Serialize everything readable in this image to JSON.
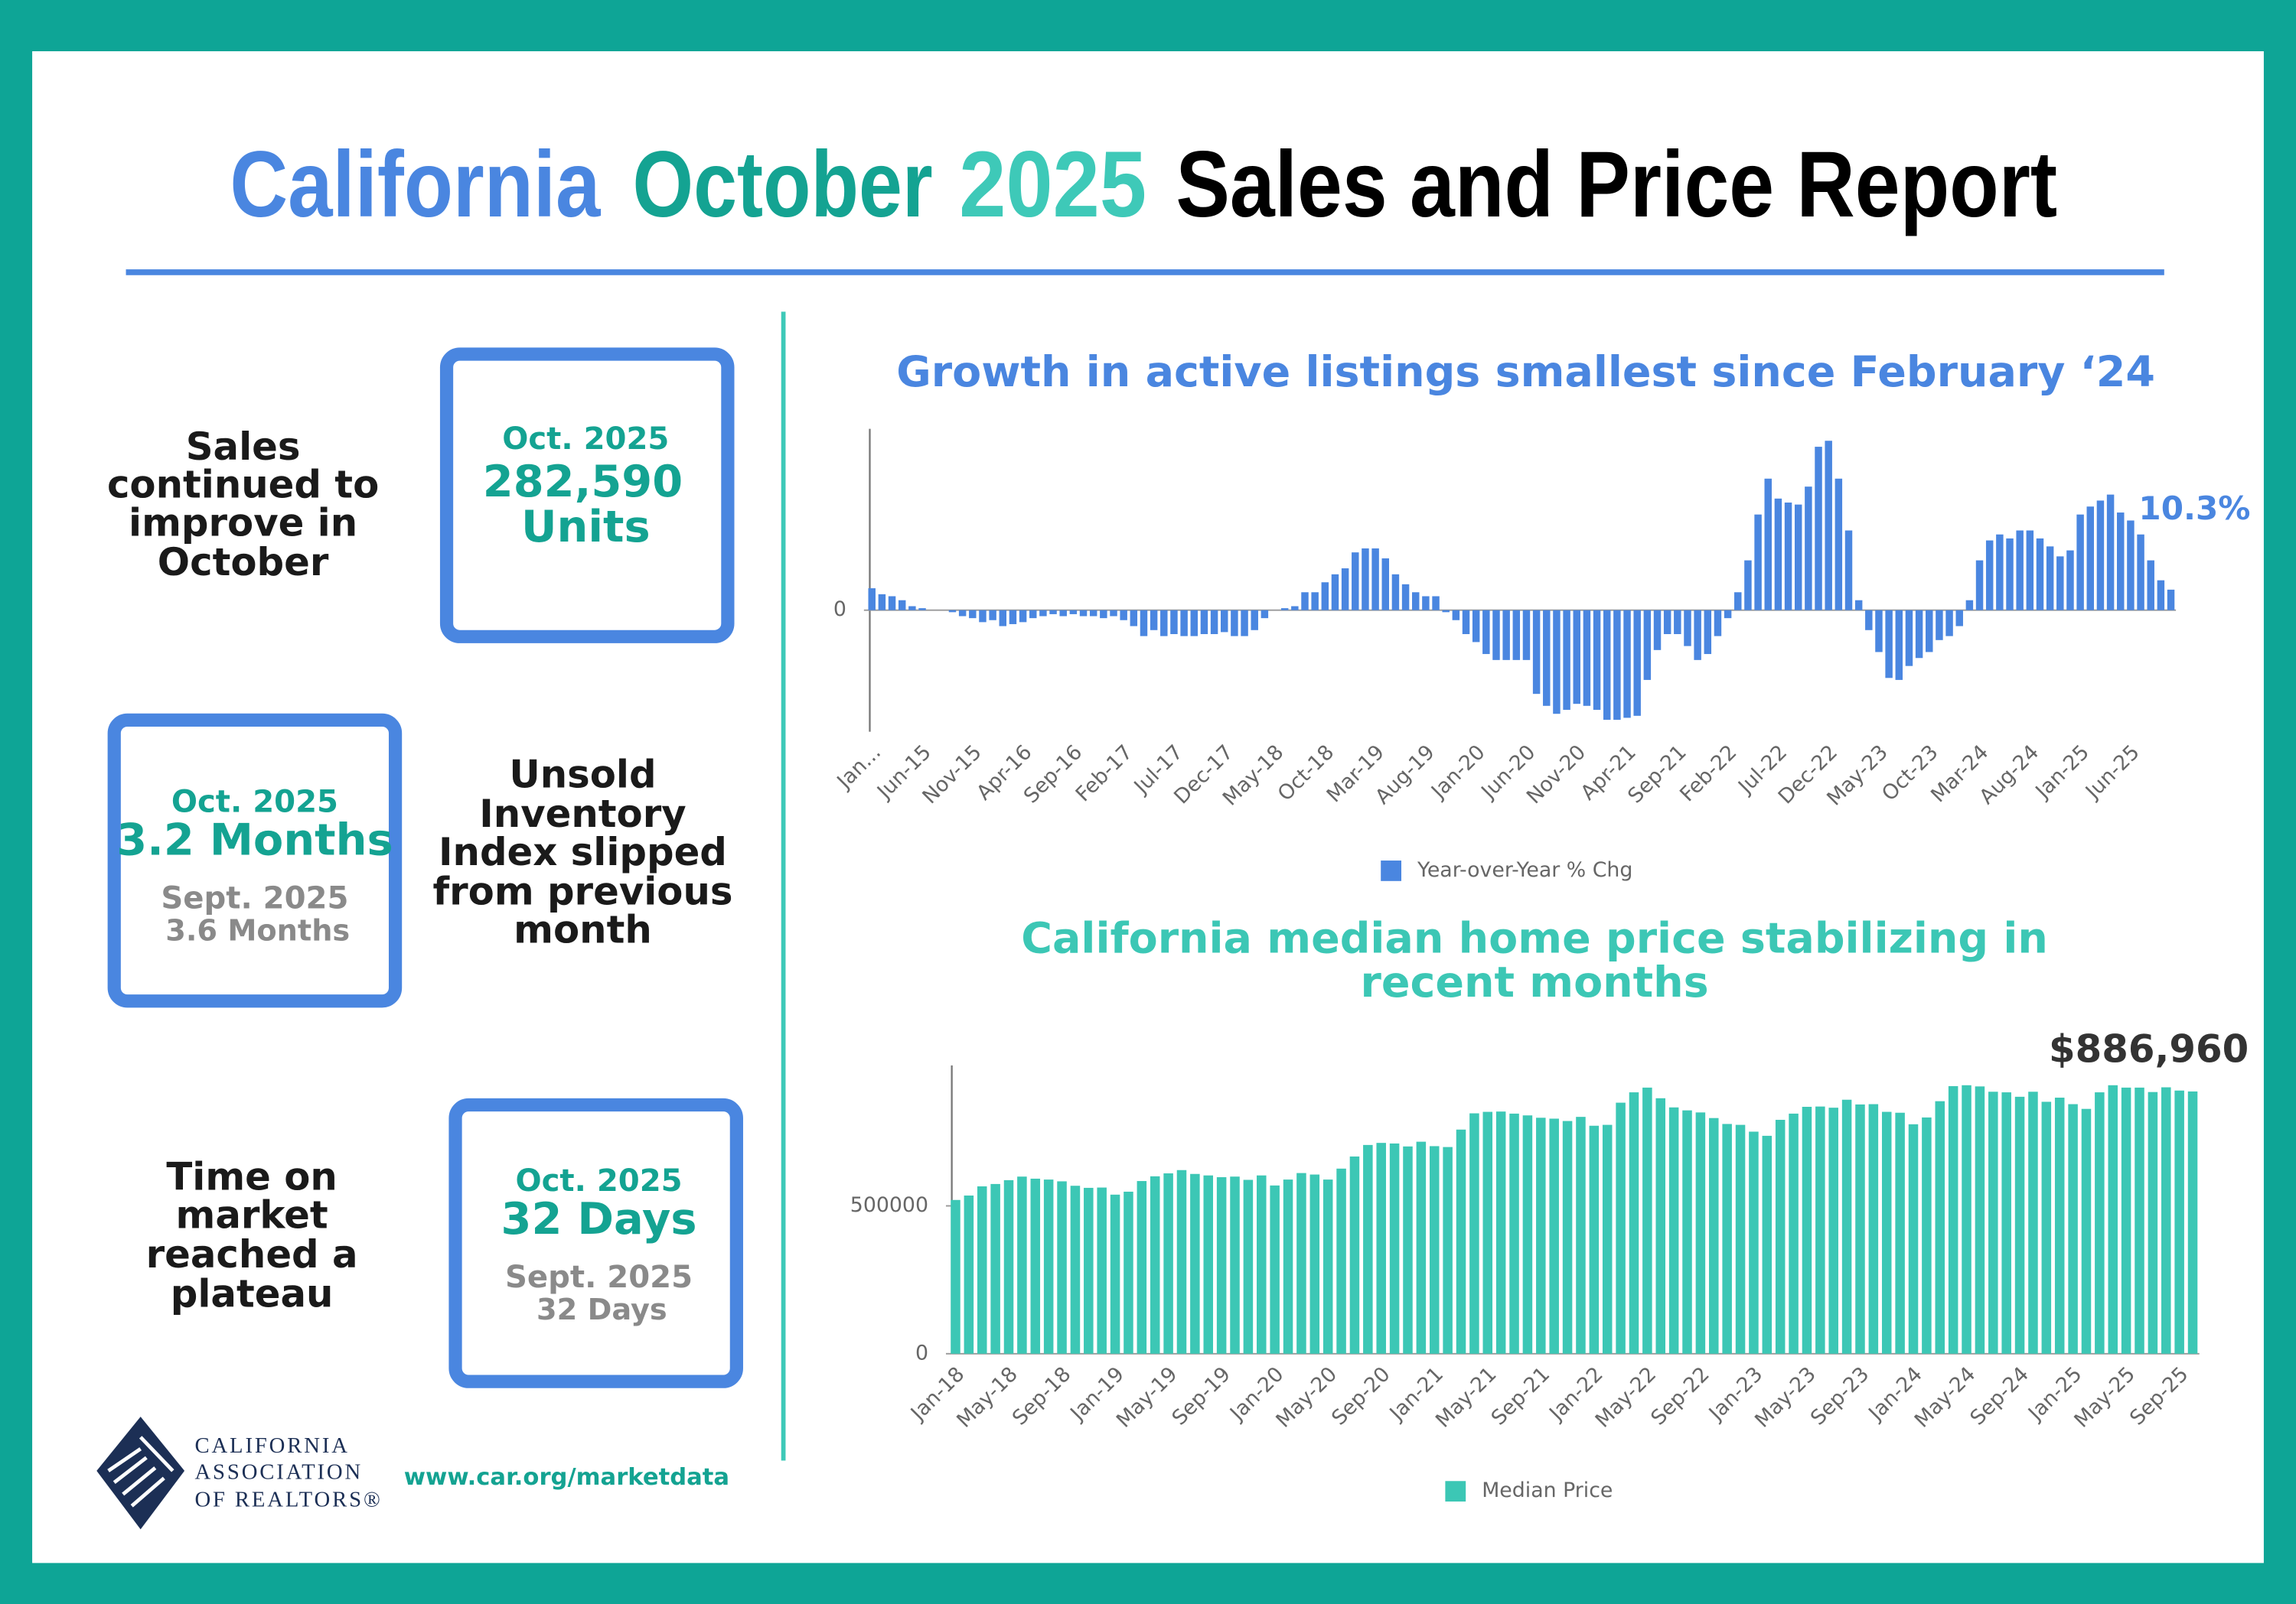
{
  "header": {
    "title": [
      "California",
      "October",
      "2025",
      "Sales and Price Report"
    ]
  },
  "panels": [
    {
      "note": [
        "Sales",
        "continued to",
        "improve in",
        "October"
      ],
      "box": [
        "Oct. 2025",
        "282,590",
        "Units"
      ]
    },
    {
      "box": [
        "Oct. 2025",
        "3.2 Months",
        "Sept. 2025",
        "3.6 Months"
      ],
      "note": [
        "Unsold",
        "Inventory",
        "Index slipped",
        "from previous",
        "month"
      ]
    },
    {
      "note": [
        "Time on",
        "market",
        "reached a",
        "plateau"
      ],
      "box": [
        "Oct. 2025",
        "32 Days",
        "Sept. 2025",
        "32 Days"
      ]
    }
  ],
  "footer": {
    "logo_text": [
      "CALIFORNIA",
      "ASSOCIATION",
      "OF REALTORS®"
    ],
    "url": "www.car.org/marketdata"
  },
  "chart_data": [
    {
      "type": "bar",
      "title": [
        "Growth in active listings smallest since February ‘24"
      ],
      "categories": [
        "Jan...",
        null,
        null,
        null,
        null,
        "Jun-15",
        null,
        null,
        null,
        null,
        "Nov-15",
        null,
        null,
        null,
        null,
        "Apr-16",
        null,
        null,
        null,
        null,
        "Sep-16",
        null,
        null,
        null,
        null,
        "Feb-17",
        null,
        null,
        null,
        null,
        "Jul-17",
        null,
        null,
        null,
        null,
        "Dec-17",
        null,
        null,
        null,
        null,
        "May-18",
        null,
        null,
        null,
        null,
        "Oct-18",
        null,
        null,
        null,
        null,
        "Mar-19",
        null,
        null,
        null,
        null,
        "Aug-19",
        null,
        null,
        null,
        null,
        "Jan-20",
        null,
        null,
        null,
        null,
        "Jun-20",
        null,
        null,
        null,
        null,
        "Nov-20",
        null,
        null,
        null,
        null,
        "Apr-21",
        null,
        null,
        null,
        null,
        "Sep-21",
        null,
        null,
        null,
        null,
        "Feb-22",
        null,
        null,
        null,
        null,
        "Jul-22",
        null,
        null,
        null,
        null,
        "Dec-22",
        null,
        null,
        null,
        null,
        "May-23",
        null,
        null,
        null,
        null,
        "Oct-23",
        null,
        null,
        null,
        null,
        "Mar-24",
        null,
        null,
        null,
        null,
        "Aug-24",
        null,
        null,
        null,
        null,
        "Jan-25",
        null,
        null,
        null,
        null,
        "Jun-25",
        null,
        null,
        null,
        null
      ],
      "series": [
        {
          "name": "Year-over-Year % Chg",
          "color": "#4a86e0",
          "values": [
            11,
            8,
            7,
            5,
            2,
            1,
            0,
            0,
            -1,
            -3,
            -4,
            -6,
            -5,
            -8,
            -7,
            -6,
            -4,
            -3,
            -2,
            -3,
            -2,
            -3,
            -3,
            -4,
            -3,
            -5,
            -8,
            -13,
            -10,
            -13,
            -12,
            -13,
            -13,
            -12,
            -12,
            -11,
            -13,
            -13,
            -10,
            -4,
            0,
            1,
            2,
            9,
            9,
            14,
            18,
            21,
            29,
            31,
            31,
            26,
            18,
            13,
            9,
            7,
            7,
            -1,
            -5,
            -12,
            -16,
            -22,
            -25,
            -25,
            -25,
            -25,
            -42,
            -48,
            -52,
            -50,
            -47,
            -48,
            -50,
            -55,
            -55,
            -54,
            -53,
            -35,
            -20,
            -12,
            -12,
            -18,
            -25,
            -22,
            -13,
            -4,
            9,
            25,
            48,
            66,
            56,
            54,
            53,
            62,
            82,
            85,
            66,
            40,
            5,
            -10,
            -21,
            -34,
            -35,
            -28,
            -24,
            -21,
            -15,
            -13,
            -8,
            5,
            25,
            35,
            38,
            36,
            40,
            40,
            36,
            32,
            27,
            30,
            48,
            52,
            55,
            58,
            49,
            45,
            38,
            25,
            15,
            10.3
          ],
          "value_labels": [
            null,
            null,
            null,
            null,
            null,
            null,
            null,
            null,
            null,
            null,
            null,
            null,
            null,
            null,
            null,
            null,
            null,
            null,
            null,
            null,
            null,
            null,
            null,
            null,
            null,
            null,
            null,
            null,
            null,
            null,
            null,
            null,
            null,
            null,
            null,
            null,
            null,
            null,
            null,
            null,
            null,
            null,
            null,
            null,
            null,
            null,
            null,
            null,
            null,
            null,
            null,
            null,
            null,
            null,
            null,
            null,
            null,
            null,
            null,
            null,
            null,
            null,
            null,
            null,
            null,
            null,
            null,
            null,
            null,
            null,
            null,
            null,
            null,
            null,
            null,
            null,
            null,
            null,
            null,
            null,
            null,
            null,
            null,
            null,
            null,
            null,
            null,
            null,
            null,
            null,
            null,
            null,
            null,
            null,
            null,
            null,
            null,
            null,
            null,
            null,
            null,
            null,
            null,
            null,
            null,
            null,
            null,
            null,
            null,
            null,
            null,
            null,
            null,
            null,
            null,
            null,
            null,
            null,
            null,
            null,
            null,
            null,
            null,
            null,
            null,
            null,
            null,
            null,
            null,
            "10.3%"
          ]
        }
      ],
      "ylim": [
        -61,
        91
      ],
      "yticks": [
        0
      ],
      "grid": false,
      "legend": "bottom"
    },
    {
      "type": "bar",
      "title": [
        "California median home price stabilizing in",
        "recent months"
      ],
      "categories": [
        "Jan-18",
        null,
        null,
        null,
        "May-18",
        null,
        null,
        null,
        "Sep-18",
        null,
        null,
        null,
        "Jan-19",
        null,
        null,
        null,
        "May-19",
        null,
        null,
        null,
        "Sep-19",
        null,
        null,
        null,
        "Jan-20",
        null,
        null,
        null,
        "May-20",
        null,
        null,
        null,
        "Sep-20",
        null,
        null,
        null,
        "Jan-21",
        null,
        null,
        null,
        "May-21",
        null,
        null,
        null,
        "Sep-21",
        null,
        null,
        null,
        "Jan-22",
        null,
        null,
        null,
        "May-22",
        null,
        null,
        null,
        "Sep-22",
        null,
        null,
        null,
        "Jan-23",
        null,
        null,
        null,
        "May-23",
        null,
        null,
        null,
        "Sep-23",
        null,
        null,
        null,
        "Jan-24",
        null,
        null,
        null,
        "May-24",
        null,
        null,
        null,
        "Sep-24",
        null,
        null,
        null,
        "Jan-25",
        null,
        null,
        null,
        "May-25",
        null,
        null,
        null,
        "Sep-25",
        null
      ],
      "series": [
        {
          "name": "Median Price",
          "color": "#3cc7b5",
          "values": [
            520000,
            535000,
            566000,
            574000,
            587000,
            599000,
            592000,
            589000,
            583000,
            568000,
            561000,
            562000,
            538000,
            548000,
            584000,
            600000,
            610000,
            621000,
            608000,
            603000,
            597000,
            599000,
            588000,
            603000,
            569000,
            589000,
            611000,
            606000,
            589000,
            626000,
            667000,
            706000,
            713000,
            711000,
            701000,
            717000,
            702000,
            699000,
            758000,
            813000,
            818000,
            819000,
            812000,
            806000,
            798000,
            795000,
            787000,
            801000,
            771000,
            774000,
            849000,
            884000,
            900000,
            864000,
            833000,
            823000,
            816000,
            797000,
            777000,
            774000,
            751000,
            737000,
            791000,
            812000,
            835000,
            836000,
            832000,
            859000,
            843000,
            844000,
            818000,
            815000,
            776000,
            799000,
            854000,
            905000,
            908000,
            904000,
            886000,
            884000,
            869000,
            886000,
            852000,
            866000,
            844000,
            828000,
            884000,
            908000,
            900000,
            900000,
            885000,
            901000,
            890000,
            886960
          ],
          "value_labels": [
            null,
            null,
            null,
            null,
            null,
            null,
            null,
            null,
            null,
            null,
            null,
            null,
            null,
            null,
            null,
            null,
            null,
            null,
            null,
            null,
            null,
            null,
            null,
            null,
            null,
            null,
            null,
            null,
            null,
            null,
            null,
            null,
            null,
            null,
            null,
            null,
            null,
            null,
            null,
            null,
            null,
            null,
            null,
            null,
            null,
            null,
            null,
            null,
            null,
            null,
            null,
            null,
            null,
            null,
            null,
            null,
            null,
            null,
            null,
            null,
            null,
            null,
            null,
            null,
            null,
            null,
            null,
            null,
            null,
            null,
            null,
            null,
            null,
            null,
            null,
            null,
            null,
            null,
            null,
            null,
            null,
            null,
            null,
            null,
            null,
            null,
            null,
            null,
            null,
            null,
            null,
            null,
            null,
            "$886,960"
          ]
        }
      ],
      "ylim": [
        0,
        975000
      ],
      "yticks": [
        0,
        500000
      ],
      "grid": false,
      "legend": "bottom"
    }
  ]
}
